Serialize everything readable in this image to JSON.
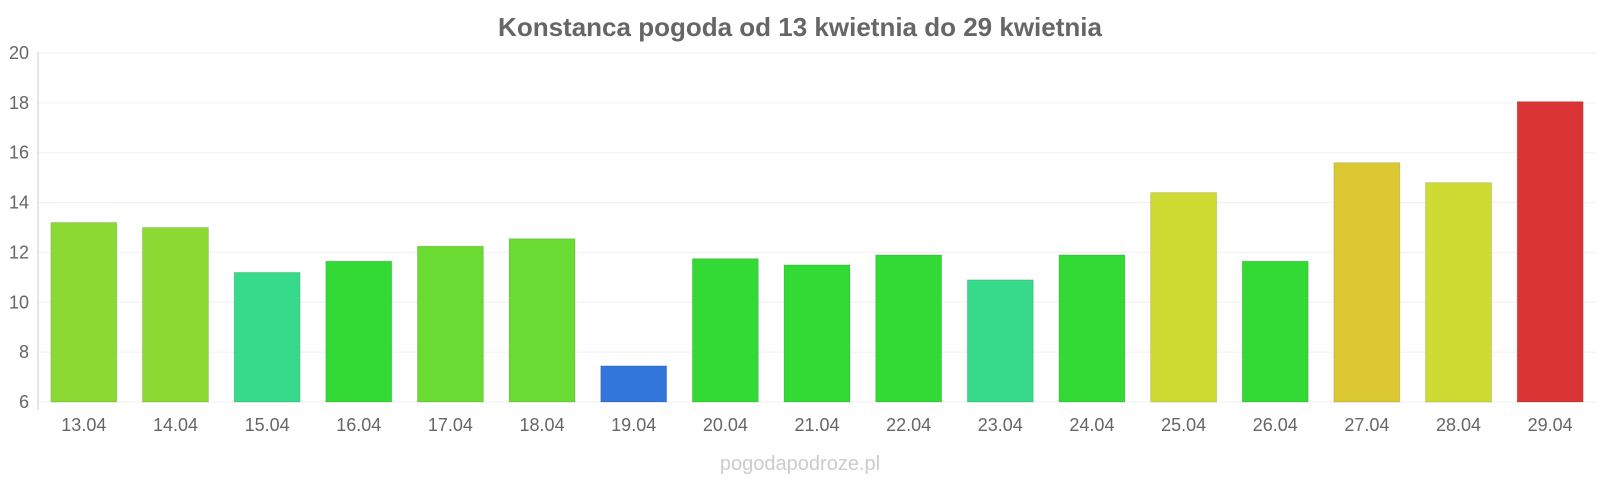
{
  "chart_data": {
    "type": "bar",
    "title": "Konstanca pogoda od 13 kwietnia do 29 kwietnia",
    "xlabel": "",
    "ylabel": "",
    "ylim": [
      6,
      20
    ],
    "yticks": [
      6,
      8,
      10,
      12,
      14,
      16,
      18,
      20
    ],
    "grid": true,
    "legend": "none",
    "categories": [
      "13.04",
      "14.04",
      "15.04",
      "16.04",
      "17.04",
      "18.04",
      "19.04",
      "20.04",
      "21.04",
      "22.04",
      "23.04",
      "24.04",
      "25.04",
      "26.04",
      "27.04",
      "28.04",
      "29.04"
    ],
    "values": [
      13.2,
      13.0,
      11.2,
      11.65,
      12.25,
      12.55,
      7.45,
      11.75,
      11.5,
      11.9,
      10.9,
      11.9,
      14.4,
      11.65,
      15.6,
      14.8,
      18.05
    ],
    "colors": [
      "#8ADA33",
      "#8ADA33",
      "#36DA8A",
      "#33DA36",
      "#6ADB33",
      "#6ADB33",
      "#3376DB",
      "#33DA36",
      "#33DA36",
      "#33DA36",
      "#36DA8A",
      "#33DA36",
      "#CEDB33",
      "#33DA36",
      "#DBC833",
      "#CEDB33",
      "#DB3434"
    ]
  },
  "watermark": "pogodapodroze.pl"
}
